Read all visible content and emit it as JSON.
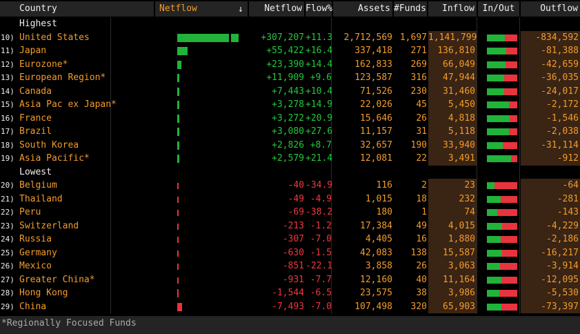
{
  "header": {
    "country": "Country",
    "netflow_sort": "Netflow",
    "sort_arrow": "↓",
    "netflow": "Netflow",
    "flow_pct": "Flow%",
    "assets": "Assets",
    "funds": "#Funds",
    "inflow": "Inflow",
    "in_out": "In/Out",
    "outflow": "Outflow"
  },
  "sections": {
    "highest": "Highest",
    "lowest": "Lowest"
  },
  "rows_high": [
    {
      "idx": "10)",
      "name": "United States",
      "netflow": "+307,207",
      "flow": "+11.3",
      "assets": "2,712,569",
      "funds": "1,697",
      "inflow": "1,141,799",
      "outflow": "-834,592",
      "bar_value": 307207,
      "in_share": 0.58
    },
    {
      "idx": "11)",
      "name": "Japan",
      "netflow": "+55,422",
      "flow": "+16.4",
      "assets": "337,418",
      "funds": "271",
      "inflow": "136,810",
      "outflow": "-81,388",
      "bar_value": 55422,
      "in_share": 0.63
    },
    {
      "idx": "12)",
      "name": "Eurozone*",
      "netflow": "+23,390",
      "flow": "+14.4",
      "assets": "162,833",
      "funds": "269",
      "inflow": "66,049",
      "outflow": "-42,659",
      "bar_value": 23390,
      "in_share": 0.61
    },
    {
      "idx": "13)",
      "name": "European Region*",
      "netflow": "+11,909",
      "flow": "+9.6",
      "assets": "123,587",
      "funds": "316",
      "inflow": "47,944",
      "outflow": "-36,035",
      "bar_value": 11909,
      "in_share": 0.57
    },
    {
      "idx": "14)",
      "name": "Canada",
      "netflow": "+7,443",
      "flow": "+10.4",
      "assets": "71,526",
      "funds": "230",
      "inflow": "31,460",
      "outflow": "-24,017",
      "bar_value": 7443,
      "in_share": 0.57
    },
    {
      "idx": "15)",
      "name": "Asia Pac ex Japan*",
      "netflow": "+3,278",
      "flow": "+14.9",
      "assets": "22,026",
      "funds": "45",
      "inflow": "5,450",
      "outflow": "-2,172",
      "bar_value": 3278,
      "in_share": 0.72
    },
    {
      "idx": "16)",
      "name": "France",
      "netflow": "+3,272",
      "flow": "+20.9",
      "assets": "15,646",
      "funds": "26",
      "inflow": "4,818",
      "outflow": "-1,546",
      "bar_value": 3272,
      "in_share": 0.76
    },
    {
      "idx": "17)",
      "name": "Brazil",
      "netflow": "+3,080",
      "flow": "+27.6",
      "assets": "11,157",
      "funds": "31",
      "inflow": "5,118",
      "outflow": "-2,038",
      "bar_value": 3080,
      "in_share": 0.72
    },
    {
      "idx": "18)",
      "name": "South Korea",
      "netflow": "+2,826",
      "flow": "+8.7",
      "assets": "32,657",
      "funds": "190",
      "inflow": "33,940",
      "outflow": "-31,114",
      "bar_value": 2826,
      "in_share": 0.52
    },
    {
      "idx": "19)",
      "name": "Asia Pacific*",
      "netflow": "+2,579",
      "flow": "+21.4",
      "assets": "12,081",
      "funds": "22",
      "inflow": "3,491",
      "outflow": "-912",
      "bar_value": 2579,
      "in_share": 0.79
    }
  ],
  "rows_low": [
    {
      "idx": "20)",
      "name": "Belgium",
      "netflow": "-40",
      "flow": "-34.9",
      "assets": "116",
      "funds": "2",
      "inflow": "23",
      "outflow": "-64",
      "bar_value": -40,
      "in_share": 0.26
    },
    {
      "idx": "21)",
      "name": "Thailand",
      "netflow": "-49",
      "flow": "-4.9",
      "assets": "1,015",
      "funds": "18",
      "inflow": "232",
      "outflow": "-281",
      "bar_value": -49,
      "in_share": 0.45
    },
    {
      "idx": "22)",
      "name": "Peru",
      "netflow": "-69",
      "flow": "-38.2",
      "assets": "180",
      "funds": "1",
      "inflow": "74",
      "outflow": "-143",
      "bar_value": -69,
      "in_share": 0.34
    },
    {
      "idx": "23)",
      "name": "Switzerland",
      "netflow": "-213",
      "flow": "-1.2",
      "assets": "17,384",
      "funds": "49",
      "inflow": "4,015",
      "outflow": "-4,229",
      "bar_value": -213,
      "in_share": 0.49
    },
    {
      "idx": "24)",
      "name": "Russia",
      "netflow": "-307",
      "flow": "-7.0",
      "assets": "4,405",
      "funds": "16",
      "inflow": "1,880",
      "outflow": "-2,186",
      "bar_value": -307,
      "in_share": 0.46
    },
    {
      "idx": "25)",
      "name": "Germany",
      "netflow": "-630",
      "flow": "-1.5",
      "assets": "42,083",
      "funds": "138",
      "inflow": "15,587",
      "outflow": "-16,217",
      "bar_value": -630,
      "in_share": 0.49
    },
    {
      "idx": "26)",
      "name": "Mexico",
      "netflow": "-851",
      "flow": "-22.1",
      "assets": "3,858",
      "funds": "26",
      "inflow": "3,063",
      "outflow": "-3,914",
      "bar_value": -851,
      "in_share": 0.44
    },
    {
      "idx": "27)",
      "name": "Greater China*",
      "netflow": "-931",
      "flow": "-7.7",
      "assets": "12,160",
      "funds": "40",
      "inflow": "11,164",
      "outflow": "-12,095",
      "bar_value": -931,
      "in_share": 0.48
    },
    {
      "idx": "28)",
      "name": "Hong Kong",
      "netflow": "-1,544",
      "flow": "-6.5",
      "assets": "23,575",
      "funds": "38",
      "inflow": "3,986",
      "outflow": "-5,530",
      "bar_value": -1544,
      "in_share": 0.42
    },
    {
      "idx": "29)",
      "name": "China",
      "netflow": "-7,493",
      "flow": "-7.0",
      "assets": "107,498",
      "funds": "320",
      "inflow": "65,903",
      "outflow": "-73,397",
      "bar_value": -7493,
      "in_share": 0.47
    }
  ],
  "footer": {
    "note": "*Regionally Focused Funds"
  }
}
